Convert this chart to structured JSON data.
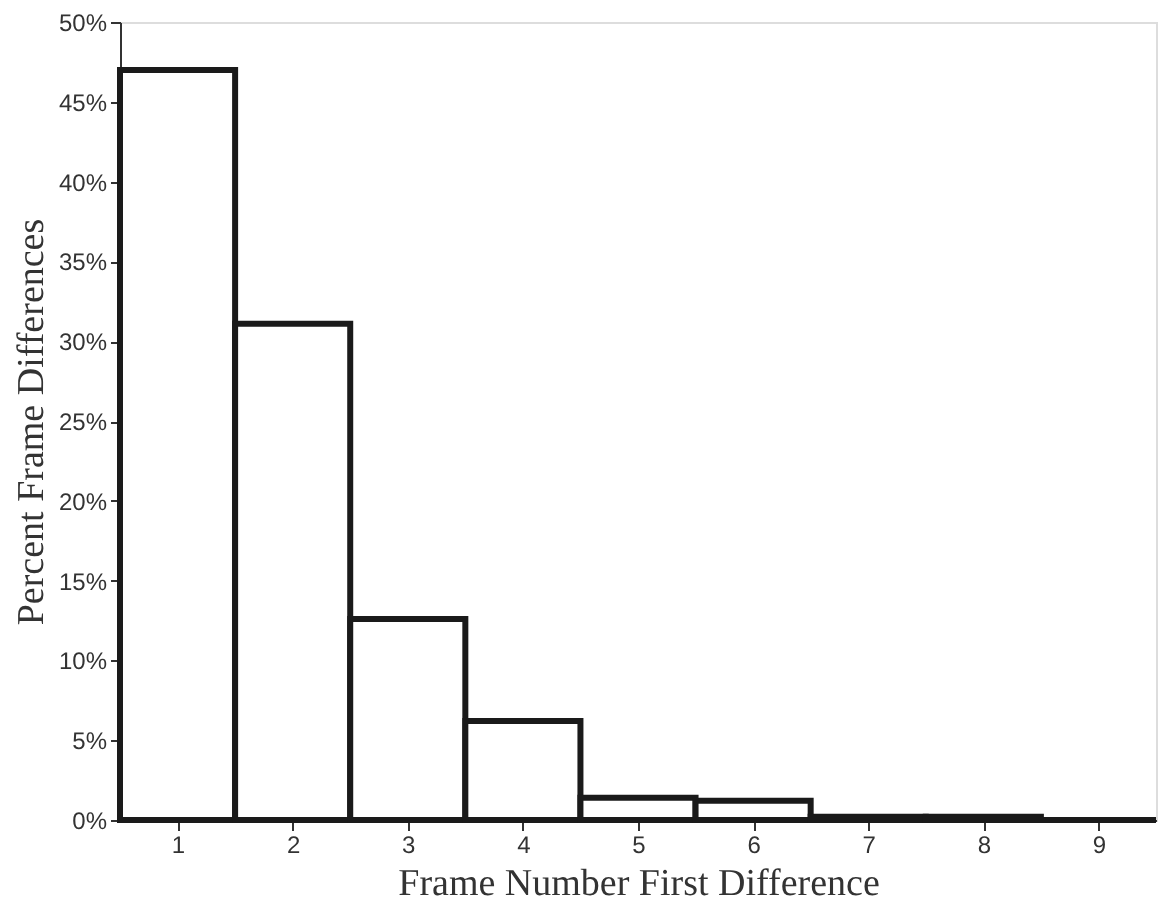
{
  "chart_data": {
    "type": "histogram",
    "xlabel": "Frame Number First Difference",
    "ylabel": "Percent Frame Differences",
    "bins": [
      0.5,
      1.5,
      2.5,
      3.5,
      4.5,
      5.5,
      6.5,
      7.5,
      8.5,
      9.5
    ],
    "values": [
      47,
      31.1,
      12.6,
      6.2,
      1.4,
      1.2,
      0.2,
      0.2,
      0
    ],
    "color": "#1a1a1a",
    "xlim": [
      0.5,
      9.5
    ],
    "xticks": [
      1,
      2,
      3,
      4,
      5,
      6,
      7,
      8,
      9
    ],
    "ylim": [
      0,
      50
    ],
    "yticks": [
      {
        "value": 0,
        "label": "0%"
      },
      {
        "value": 5,
        "label": "5%"
      },
      {
        "value": 10,
        "label": "10%"
      },
      {
        "value": 15,
        "label": "15%"
      },
      {
        "value": 20,
        "label": "20%"
      },
      {
        "value": 25,
        "label": "25%"
      },
      {
        "value": 30,
        "label": "30%"
      },
      {
        "value": 35,
        "label": "35%"
      },
      {
        "value": 40,
        "label": "40%"
      },
      {
        "value": 45,
        "label": "45%"
      },
      {
        "value": 50,
        "label": "50%"
      }
    ],
    "grid": false
  }
}
